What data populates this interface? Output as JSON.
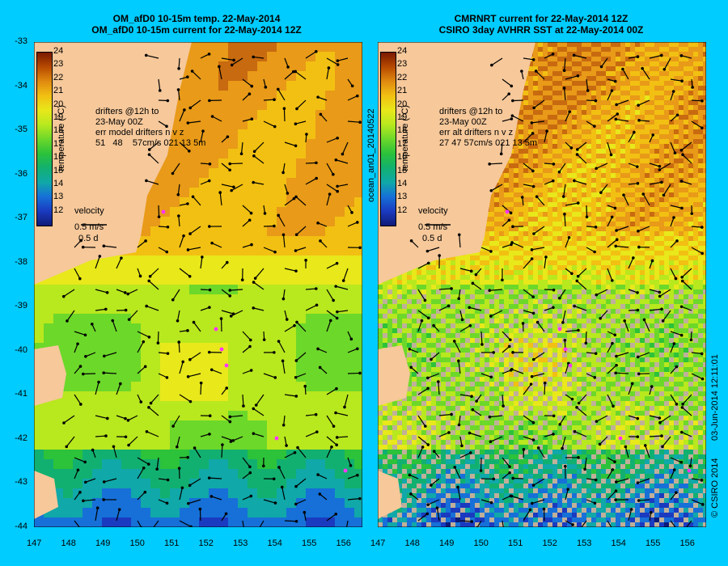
{
  "left": {
    "title_line1": "OM_afD0 10-15m temp. 22-May-2014",
    "title_line2": "OM_afD0 10-15m current for 22-May-2014 12Z",
    "drifters": "drifters @12h to\n23-May 00Z\nerr model drifters n v z\n51   48    57cm/s 021 13 5m",
    "velocity": "velocity",
    "vel_scale": "0.5 m/s",
    "vel_time": "0.5 d",
    "cbar_title": "temperature (°C)"
  },
  "right": {
    "title_line1": "CMRNRT current for 22-May-2014 12Z",
    "title_line2": "CSIRO 3day AVHRR SST at 22-May-2014 00Z",
    "drifters": "drifters @12h to\n23-May 00Z\nerr alt drifters n v z\n27 47 57cm/s 021 13 5m",
    "velocity": "velocity",
    "vel_scale": "0.5 m/s",
    "vel_time": "0.5 d",
    "cbar_title": "temperature (°C)"
  },
  "mid_label": "ocean_an01_20140522",
  "side_date": "03-Jun-2014 12:11:01",
  "side_copy": "© CSIRO 2014",
  "x_ticks": [
    "147",
    "148",
    "149",
    "150",
    "151",
    "152",
    "153",
    "154",
    "155",
    "156"
  ],
  "y_ticks": [
    "-33",
    "-34",
    "-35",
    "-36",
    "-37",
    "-38",
    "-39",
    "-40",
    "-41",
    "-42",
    "-43",
    "-44"
  ],
  "cbar_ticks": [
    "24",
    "23",
    "22",
    "21",
    "20",
    "19",
    "18",
    "17",
    "16",
    "15",
    "14",
    "13",
    "12"
  ],
  "colors": {
    "background": "#00ccff",
    "land": "#f6c89a",
    "drifter": "#ff33ff"
  }
}
